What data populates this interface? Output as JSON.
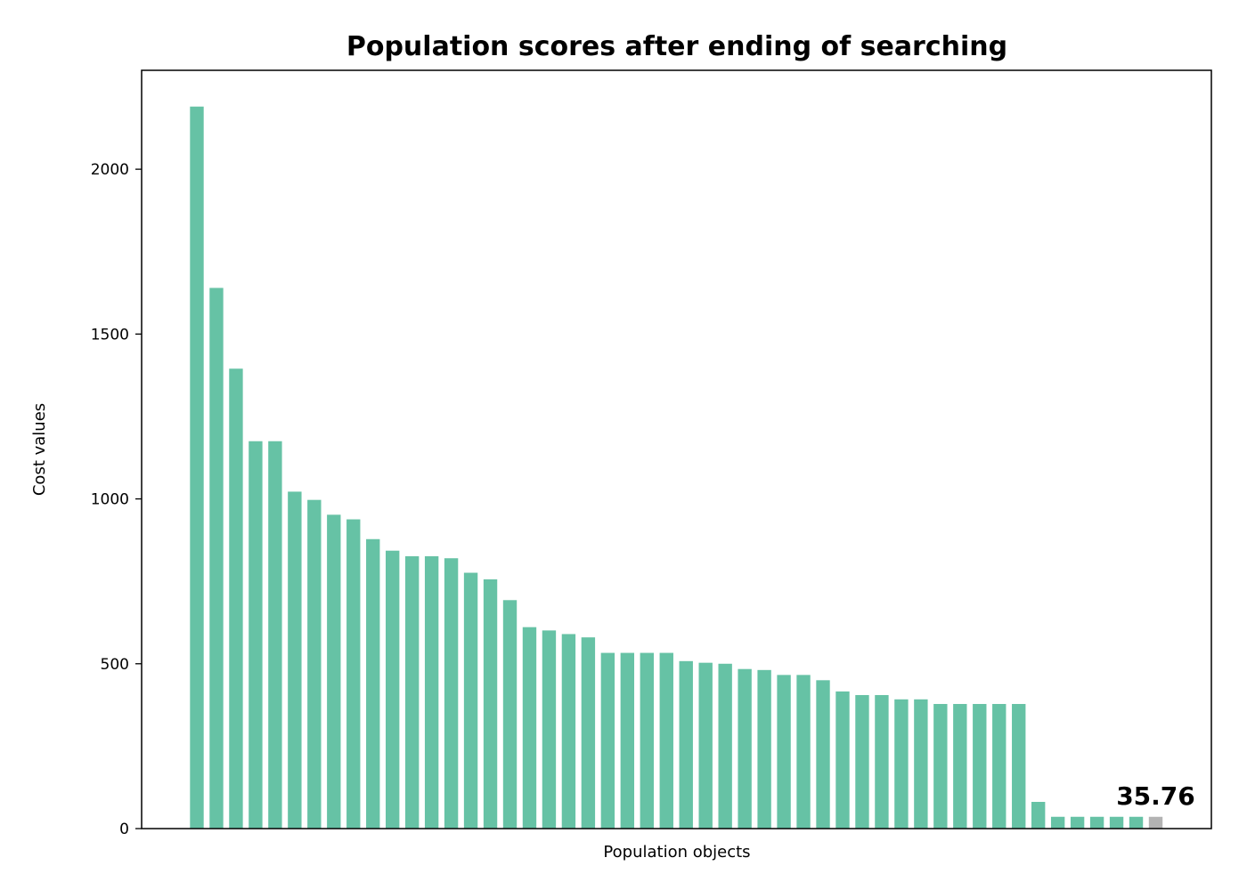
{
  "chart_data": {
    "type": "bar",
    "title": "Population scores after ending of searching",
    "xlabel": "Population objects",
    "ylabel": "Cost values",
    "ylim": [
      0,
      2300
    ],
    "yticks": [
      0,
      500,
      1000,
      1500,
      2000
    ],
    "ytick_labels": [
      "0",
      "500",
      "1000",
      "1500",
      "2000"
    ],
    "grid": false,
    "legend": "none",
    "values": [
      2190,
      1640,
      1395,
      1175,
      1175,
      1022,
      997,
      952,
      938,
      878,
      843,
      826,
      826,
      820,
      776,
      756,
      693,
      611,
      601,
      590,
      580,
      533,
      533,
      533,
      533,
      508,
      503,
      500,
      484,
      481,
      466,
      466,
      450,
      416,
      405,
      405,
      392,
      392,
      378,
      378,
      378,
      378,
      378,
      81,
      35.76,
      35.76,
      35.76,
      35.76,
      35.76,
      35.76
    ],
    "bar_color": "#66c2a5",
    "highlight_color": "#b3b3b3",
    "highlight_index": 49,
    "annotation": {
      "text": "35.76",
      "bar_index": 49
    }
  }
}
